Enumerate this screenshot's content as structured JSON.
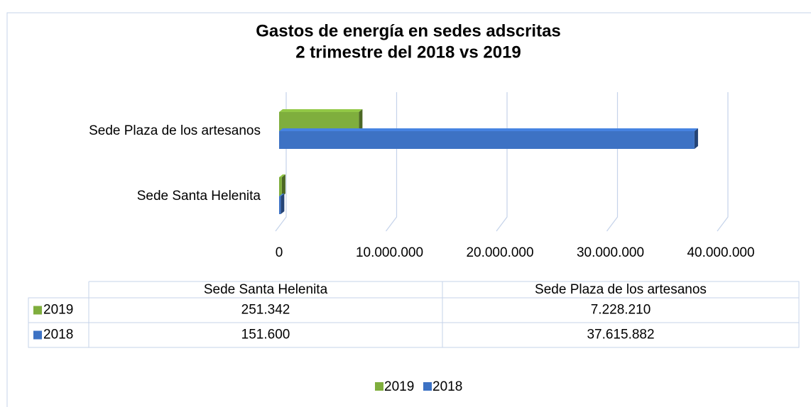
{
  "chart_data": {
    "type": "bar3d_horizontal",
    "title": "Gastos de energía en sedes adscritas",
    "subtitle": "2 trimestre del 2018 vs 2019",
    "categories": [
      "Sede Santa Helenita",
      "Sede Plaza de los artesanos"
    ],
    "series": [
      {
        "name": "2019",
        "color": "#7fae3d",
        "values": [
          251342,
          7228210
        ],
        "value_labels": [
          "251.342",
          "7.228.210"
        ]
      },
      {
        "name": "2018",
        "color": "#3d72c4",
        "values": [
          151600,
          37615882
        ],
        "value_labels": [
          "151.600",
          "37.615.882"
        ]
      }
    ],
    "xlim": [
      0,
      40000000
    ],
    "xticks": [
      0,
      {
        "value": 10000000,
        "label": "10.000.000"
      },
      {
        "value": 20000000,
        "label": "20.000.000"
      },
      {
        "value": 30000000,
        "label": "30.000.000"
      },
      {
        "value": 40000000,
        "label": "40.000.000"
      }
    ],
    "grid": true,
    "legend": "bottom",
    "data_table": true
  }
}
